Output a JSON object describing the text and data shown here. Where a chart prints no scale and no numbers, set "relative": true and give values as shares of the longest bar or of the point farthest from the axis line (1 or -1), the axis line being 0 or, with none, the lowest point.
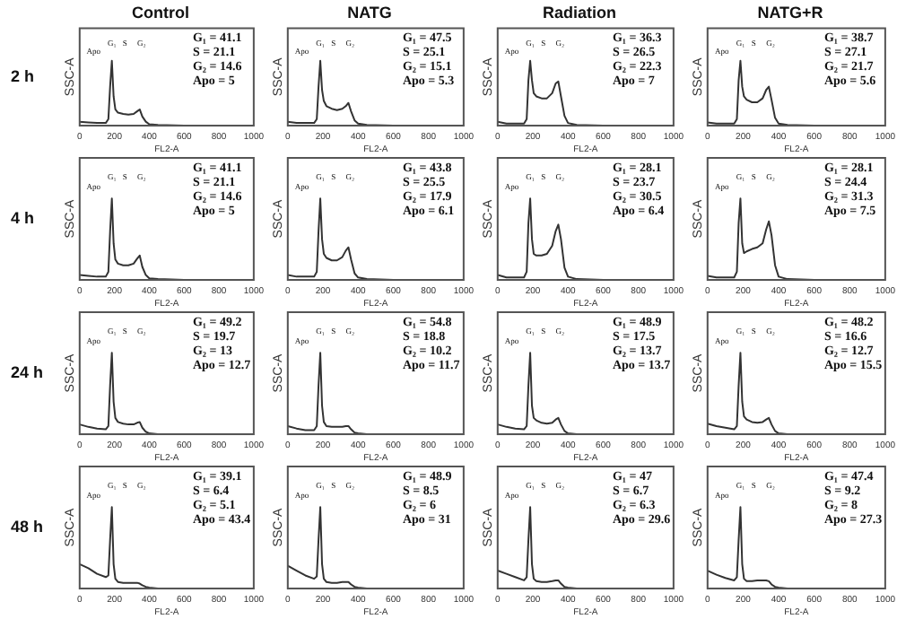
{
  "chart_data": [
    {
      "type": "line",
      "title": "Control",
      "xlabel": "FL2-A",
      "ylabel": "SSC-A",
      "relative": true,
      "grid": false,
      "legend": false,
      "marker": "none",
      "xlim": [
        0,
        1000
      ],
      "xticks": [
        0,
        200,
        400,
        600,
        800,
        1000
      ],
      "x": [
        0,
        50,
        100,
        150,
        165,
        175,
        185,
        195,
        205,
        220,
        250,
        280,
        310,
        330,
        345,
        360,
        380,
        400,
        450,
        600,
        1000
      ],
      "series": [
        {
          "color": "#333333",
          "values": [
            0.06,
            0.05,
            0.04,
            0.04,
            0.1,
            0.6,
            1,
            0.45,
            0.25,
            0.2,
            0.18,
            0.17,
            0.18,
            0.22,
            0.25,
            0.14,
            0.06,
            0.02,
            0.01,
            0,
            0
          ]
        }
      ],
      "annotations": [
        "2 h",
        "G₁ = 41.1",
        "S = 21.1",
        "G₂ = 14.6",
        "Apo = 5",
        "Apo",
        "G₁",
        "S",
        "G₂"
      ]
    },
    {
      "type": "line",
      "title": "NATG",
      "xlabel": "FL2-A",
      "ylabel": "SSC-A",
      "relative": true,
      "grid": false,
      "legend": false,
      "marker": "none",
      "xlim": [
        0,
        1000
      ],
      "xticks": [
        0,
        200,
        400,
        600,
        800,
        1000
      ],
      "x": [
        0,
        50,
        100,
        150,
        165,
        175,
        185,
        195,
        205,
        220,
        250,
        280,
        310,
        330,
        345,
        360,
        380,
        400,
        450,
        600,
        1000
      ],
      "series": [
        {
          "color": "#333333",
          "values": [
            0.06,
            0.04,
            0.04,
            0.04,
            0.1,
            0.6,
            1,
            0.55,
            0.38,
            0.3,
            0.26,
            0.24,
            0.26,
            0.3,
            0.35,
            0.22,
            0.08,
            0.03,
            0.01,
            0,
            0
          ]
        }
      ],
      "annotations": [
        "G₁ = 47.5",
        "S = 25.1",
        "G₂ = 15.1",
        "Apo = 5.3",
        "Apo",
        "G₁",
        "S",
        "G₂"
      ]
    },
    {
      "type": "line",
      "title": "Radiation",
      "xlabel": "FL2-A",
      "ylabel": "SSC-A",
      "relative": true,
      "grid": false,
      "legend": false,
      "marker": "none",
      "xlim": [
        0,
        1000
      ],
      "xticks": [
        0,
        200,
        400,
        600,
        800,
        1000
      ],
      "x": [
        0,
        50,
        100,
        150,
        165,
        175,
        185,
        195,
        205,
        220,
        250,
        280,
        310,
        330,
        345,
        360,
        380,
        400,
        450,
        600,
        1000
      ],
      "series": [
        {
          "color": "#333333",
          "values": [
            0.06,
            0.03,
            0.03,
            0.03,
            0.1,
            0.7,
            1,
            0.7,
            0.5,
            0.45,
            0.42,
            0.42,
            0.5,
            0.65,
            0.68,
            0.45,
            0.15,
            0.04,
            0.01,
            0,
            0
          ]
        }
      ],
      "annotations": [
        "G₁ = 36.3",
        "S = 26.5",
        "G₂ = 22.3",
        "Apo = 7",
        "Apo",
        "G₁",
        "S",
        "G₂"
      ]
    },
    {
      "type": "line",
      "title": "NATG+R",
      "xlabel": "FL2-A",
      "ylabel": "SSC-A",
      "relative": true,
      "grid": false,
      "legend": false,
      "marker": "none",
      "xlim": [
        0,
        1000
      ],
      "xticks": [
        0,
        200,
        400,
        600,
        800,
        1000
      ],
      "x": [
        0,
        50,
        100,
        150,
        165,
        175,
        185,
        195,
        205,
        220,
        250,
        280,
        310,
        330,
        345,
        360,
        380,
        400,
        450,
        600,
        1000
      ],
      "series": [
        {
          "color": "#333333",
          "values": [
            0.05,
            0.03,
            0.03,
            0.03,
            0.1,
            0.7,
            1,
            0.6,
            0.45,
            0.4,
            0.36,
            0.36,
            0.42,
            0.55,
            0.6,
            0.4,
            0.12,
            0.03,
            0.01,
            0,
            0
          ]
        }
      ],
      "annotations": [
        "G₁ = 38.7",
        "S = 27.1",
        "G₂ = 21.7",
        "Apo = 5.6",
        "Apo",
        "G₁",
        "S",
        "G₂"
      ]
    },
    {
      "type": "line",
      "xlabel": "FL2-A",
      "ylabel": "SSC-A",
      "relative": true,
      "grid": false,
      "legend": false,
      "marker": "none",
      "xlim": [
        0,
        1000
      ],
      "xticks": [
        0,
        200,
        400,
        600,
        800,
        1000
      ],
      "x": [
        0,
        50,
        100,
        150,
        165,
        175,
        185,
        195,
        205,
        220,
        250,
        280,
        310,
        330,
        345,
        360,
        380,
        400,
        450,
        600,
        1000
      ],
      "series": [
        {
          "color": "#333333",
          "values": [
            0.06,
            0.05,
            0.04,
            0.04,
            0.1,
            0.6,
            1,
            0.45,
            0.25,
            0.2,
            0.18,
            0.18,
            0.2,
            0.26,
            0.3,
            0.16,
            0.06,
            0.02,
            0.01,
            0,
            0
          ]
        }
      ],
      "annotations": [
        "4 h",
        "G₁ = 41.1",
        "S = 21.1",
        "G₂ = 14.6",
        "Apo = 5",
        "Apo",
        "G₁",
        "S",
        "G₂"
      ]
    },
    {
      "type": "line",
      "xlabel": "FL2-A",
      "ylabel": "SSC-A",
      "relative": true,
      "grid": false,
      "legend": false,
      "marker": "none",
      "xlim": [
        0,
        1000
      ],
      "xticks": [
        0,
        200,
        400,
        600,
        800,
        1000
      ],
      "x": [
        0,
        50,
        100,
        150,
        165,
        175,
        185,
        195,
        205,
        220,
        250,
        280,
        310,
        330,
        345,
        360,
        380,
        400,
        450,
        600,
        1000
      ],
      "series": [
        {
          "color": "#333333",
          "values": [
            0.06,
            0.04,
            0.04,
            0.04,
            0.1,
            0.6,
            1,
            0.5,
            0.32,
            0.27,
            0.24,
            0.24,
            0.28,
            0.36,
            0.4,
            0.25,
            0.08,
            0.03,
            0.01,
            0,
            0
          ]
        }
      ],
      "annotations": [
        "G₁ = 43.8",
        "S = 25.5",
        "G₂ = 17.9",
        "Apo = 6.1",
        "Apo",
        "G₁",
        "S",
        "G₂"
      ]
    },
    {
      "type": "line",
      "xlabel": "FL2-A",
      "ylabel": "SSC-A",
      "relative": true,
      "grid": false,
      "legend": false,
      "marker": "none",
      "xlim": [
        0,
        1000
      ],
      "xticks": [
        0,
        200,
        400,
        600,
        800,
        1000
      ],
      "x": [
        0,
        50,
        100,
        150,
        165,
        175,
        185,
        195,
        205,
        220,
        250,
        280,
        310,
        330,
        345,
        360,
        380,
        400,
        450,
        600,
        1000
      ],
      "series": [
        {
          "color": "#333333",
          "values": [
            0.06,
            0.03,
            0.03,
            0.03,
            0.1,
            0.7,
            1,
            0.5,
            0.32,
            0.3,
            0.3,
            0.32,
            0.42,
            0.6,
            0.68,
            0.5,
            0.15,
            0.04,
            0.01,
            0,
            0
          ]
        }
      ],
      "annotations": [
        "G₁ = 28.1",
        "S = 23.7",
        "G₂ = 30.5",
        "Apo = 6.4",
        "Apo",
        "G₁",
        "S",
        "G₂"
      ]
    },
    {
      "type": "line",
      "xlabel": "FL2-A",
      "ylabel": "SSC-A",
      "relative": true,
      "grid": false,
      "legend": false,
      "marker": "none",
      "xlim": [
        0,
        1000
      ],
      "xticks": [
        0,
        200,
        400,
        600,
        800,
        1000
      ],
      "x": [
        0,
        50,
        100,
        150,
        165,
        175,
        185,
        195,
        205,
        220,
        250,
        280,
        310,
        330,
        345,
        360,
        380,
        400,
        450,
        600,
        1000
      ],
      "series": [
        {
          "color": "#333333",
          "values": [
            0.05,
            0.03,
            0.03,
            0.03,
            0.1,
            0.7,
            1,
            0.45,
            0.33,
            0.35,
            0.38,
            0.4,
            0.45,
            0.62,
            0.72,
            0.55,
            0.18,
            0.04,
            0.01,
            0,
            0
          ]
        }
      ],
      "annotations": [
        "G₁ = 28.1",
        "S = 24.4",
        "G₂ = 31.3",
        "Apo = 7.5",
        "Apo",
        "G₁",
        "S",
        "G₂"
      ]
    },
    {
      "type": "line",
      "xlabel": "FL2-A",
      "ylabel": "SSC-A",
      "relative": true,
      "grid": false,
      "legend": false,
      "marker": "none",
      "xlim": [
        0,
        1000
      ],
      "xticks": [
        0,
        200,
        400,
        600,
        800,
        1000
      ],
      "x": [
        0,
        50,
        100,
        150,
        165,
        175,
        185,
        195,
        205,
        220,
        250,
        280,
        310,
        330,
        345,
        360,
        380,
        400,
        450,
        600,
        1000
      ],
      "series": [
        {
          "color": "#333333",
          "values": [
            0.12,
            0.09,
            0.07,
            0.06,
            0.1,
            0.6,
            1,
            0.4,
            0.2,
            0.15,
            0.13,
            0.12,
            0.12,
            0.14,
            0.15,
            0.08,
            0.03,
            0.01,
            0,
            0,
            0
          ]
        }
      ],
      "annotations": [
        "24 h",
        "G₁ = 49.2",
        "S = 19.7",
        "G₂ = 13",
        "Apo = 12.7",
        "Apo",
        "G₁",
        "S",
        "G₂"
      ]
    },
    {
      "type": "line",
      "xlabel": "FL2-A",
      "ylabel": "SSC-A",
      "relative": true,
      "grid": false,
      "legend": false,
      "marker": "none",
      "xlim": [
        0,
        1000
      ],
      "xticks": [
        0,
        200,
        400,
        600,
        800,
        1000
      ],
      "x": [
        0,
        50,
        100,
        150,
        165,
        175,
        185,
        195,
        205,
        220,
        250,
        280,
        310,
        330,
        345,
        360,
        380,
        400,
        450,
        600,
        1000
      ],
      "series": [
        {
          "color": "#333333",
          "values": [
            0.1,
            0.07,
            0.05,
            0.05,
            0.1,
            0.6,
            1,
            0.35,
            0.15,
            0.1,
            0.09,
            0.09,
            0.09,
            0.1,
            0.1,
            0.06,
            0.02,
            0.01,
            0,
            0,
            0
          ]
        }
      ],
      "annotations": [
        "G₁ = 54.8",
        "S = 18.8",
        "G₂ = 10.2",
        "Apo = 11.7",
        "Apo",
        "G₁",
        "S",
        "G₂"
      ]
    },
    {
      "type": "line",
      "xlabel": "FL2-A",
      "ylabel": "SSC-A",
      "relative": true,
      "grid": false,
      "legend": false,
      "marker": "none",
      "xlim": [
        0,
        1000
      ],
      "xticks": [
        0,
        200,
        400,
        600,
        800,
        1000
      ],
      "x": [
        0,
        50,
        100,
        150,
        165,
        175,
        185,
        195,
        205,
        220,
        250,
        280,
        310,
        330,
        345,
        360,
        380,
        400,
        450,
        600,
        1000
      ],
      "series": [
        {
          "color": "#333333",
          "values": [
            0.12,
            0.09,
            0.07,
            0.06,
            0.1,
            0.6,
            1,
            0.35,
            0.2,
            0.17,
            0.14,
            0.13,
            0.14,
            0.18,
            0.2,
            0.12,
            0.04,
            0.01,
            0,
            0,
            0
          ]
        }
      ],
      "annotations": [
        "G₁ = 48.9",
        "S = 17.5",
        "G₂ = 13.7",
        "Apo = 13.7",
        "Apo",
        "G₁",
        "S",
        "G₂"
      ]
    },
    {
      "type": "line",
      "xlabel": "FL2-A",
      "ylabel": "SSC-A",
      "relative": true,
      "grid": false,
      "legend": false,
      "marker": "none",
      "xlim": [
        0,
        1000
      ],
      "xticks": [
        0,
        200,
        400,
        600,
        800,
        1000
      ],
      "x": [
        0,
        50,
        100,
        150,
        165,
        175,
        185,
        195,
        205,
        220,
        250,
        280,
        310,
        330,
        345,
        360,
        380,
        400,
        450,
        600,
        1000
      ],
      "series": [
        {
          "color": "#333333",
          "values": [
            0.13,
            0.1,
            0.08,
            0.06,
            0.1,
            0.6,
            1,
            0.4,
            0.22,
            0.18,
            0.15,
            0.14,
            0.15,
            0.18,
            0.2,
            0.12,
            0.04,
            0.01,
            0,
            0,
            0
          ]
        }
      ],
      "annotations": [
        "G₁ = 48.2",
        "S = 16.6",
        "G₂ = 12.7",
        "Apo = 15.5",
        "Apo",
        "G₁",
        "S",
        "G₂"
      ]
    },
    {
      "type": "line",
      "xlabel": "FL2-A",
      "ylabel": "SSC-A",
      "relative": true,
      "grid": false,
      "legend": false,
      "marker": "none",
      "xlim": [
        0,
        1000
      ],
      "xticks": [
        0,
        200,
        400,
        600,
        800,
        1000
      ],
      "x": [
        0,
        50,
        100,
        150,
        165,
        175,
        185,
        195,
        205,
        220,
        250,
        280,
        310,
        330,
        345,
        360,
        380,
        400,
        450,
        600,
        1000
      ],
      "series": [
        {
          "color": "#333333",
          "values": [
            0.3,
            0.25,
            0.18,
            0.14,
            0.16,
            0.6,
            1,
            0.3,
            0.12,
            0.08,
            0.07,
            0.07,
            0.07,
            0.07,
            0.06,
            0.04,
            0.02,
            0.01,
            0,
            0,
            0
          ]
        }
      ],
      "annotations": [
        "48 h",
        "G₁ = 39.1",
        "S = 6.4",
        "G₂ = 5.1",
        "Apo = 43.4",
        "Apo",
        "G₁",
        "S",
        "G₂"
      ]
    },
    {
      "type": "line",
      "xlabel": "FL2-A",
      "ylabel": "SSC-A",
      "relative": true,
      "grid": false,
      "legend": false,
      "marker": "none",
      "xlim": [
        0,
        1000
      ],
      "xticks": [
        0,
        200,
        400,
        600,
        800,
        1000
      ],
      "x": [
        0,
        50,
        100,
        150,
        165,
        175,
        185,
        195,
        205,
        220,
        250,
        280,
        310,
        330,
        345,
        360,
        380,
        400,
        450,
        600,
        1000
      ],
      "series": [
        {
          "color": "#333333",
          "values": [
            0.28,
            0.22,
            0.16,
            0.12,
            0.15,
            0.6,
            1,
            0.3,
            0.12,
            0.08,
            0.07,
            0.07,
            0.08,
            0.08,
            0.08,
            0.05,
            0.02,
            0.01,
            0,
            0,
            0
          ]
        }
      ],
      "annotations": [
        "G₁ = 48.9",
        "S = 8.5",
        "G₂ = 6",
        "Apo = 31",
        "Apo",
        "G₁",
        "S",
        "G₂"
      ]
    },
    {
      "type": "line",
      "xlabel": "FL2-A",
      "ylabel": "SSC-A",
      "relative": true,
      "grid": false,
      "legend": false,
      "marker": "none",
      "xlim": [
        0,
        1000
      ],
      "xticks": [
        0,
        200,
        400,
        600,
        800,
        1000
      ],
      "x": [
        0,
        50,
        100,
        150,
        165,
        175,
        185,
        195,
        205,
        220,
        250,
        280,
        310,
        330,
        345,
        360,
        380,
        400,
        450,
        600,
        1000
      ],
      "series": [
        {
          "color": "#333333",
          "values": [
            0.22,
            0.18,
            0.14,
            0.1,
            0.14,
            0.6,
            1,
            0.3,
            0.12,
            0.09,
            0.08,
            0.08,
            0.09,
            0.1,
            0.1,
            0.06,
            0.02,
            0.01,
            0,
            0,
            0
          ]
        }
      ],
      "annotations": [
        "G₁ = 47",
        "S = 6.7",
        "G₂ = 6.3",
        "Apo = 29.6",
        "Apo",
        "G₁",
        "S",
        "G₂"
      ]
    },
    {
      "type": "line",
      "xlabel": "FL2-A",
      "ylabel": "SSC-A",
      "relative": true,
      "grid": false,
      "legend": false,
      "marker": "none",
      "xlim": [
        0,
        1000
      ],
      "xticks": [
        0,
        200,
        400,
        600,
        800,
        1000
      ],
      "x": [
        0,
        50,
        100,
        150,
        165,
        175,
        185,
        195,
        205,
        220,
        250,
        280,
        310,
        330,
        345,
        360,
        380,
        400,
        450,
        600,
        1000
      ],
      "series": [
        {
          "color": "#333333",
          "values": [
            0.22,
            0.17,
            0.13,
            0.1,
            0.14,
            0.6,
            1,
            0.3,
            0.12,
            0.09,
            0.09,
            0.1,
            0.1,
            0.1,
            0.09,
            0.05,
            0.02,
            0.01,
            0,
            0,
            0
          ]
        }
      ],
      "annotations": [
        "G₁ = 47.4",
        "S = 9.2",
        "G₂ = 8",
        "Apo = 27.3",
        "Apo",
        "G₁",
        "S",
        "G₂"
      ]
    }
  ]
}
